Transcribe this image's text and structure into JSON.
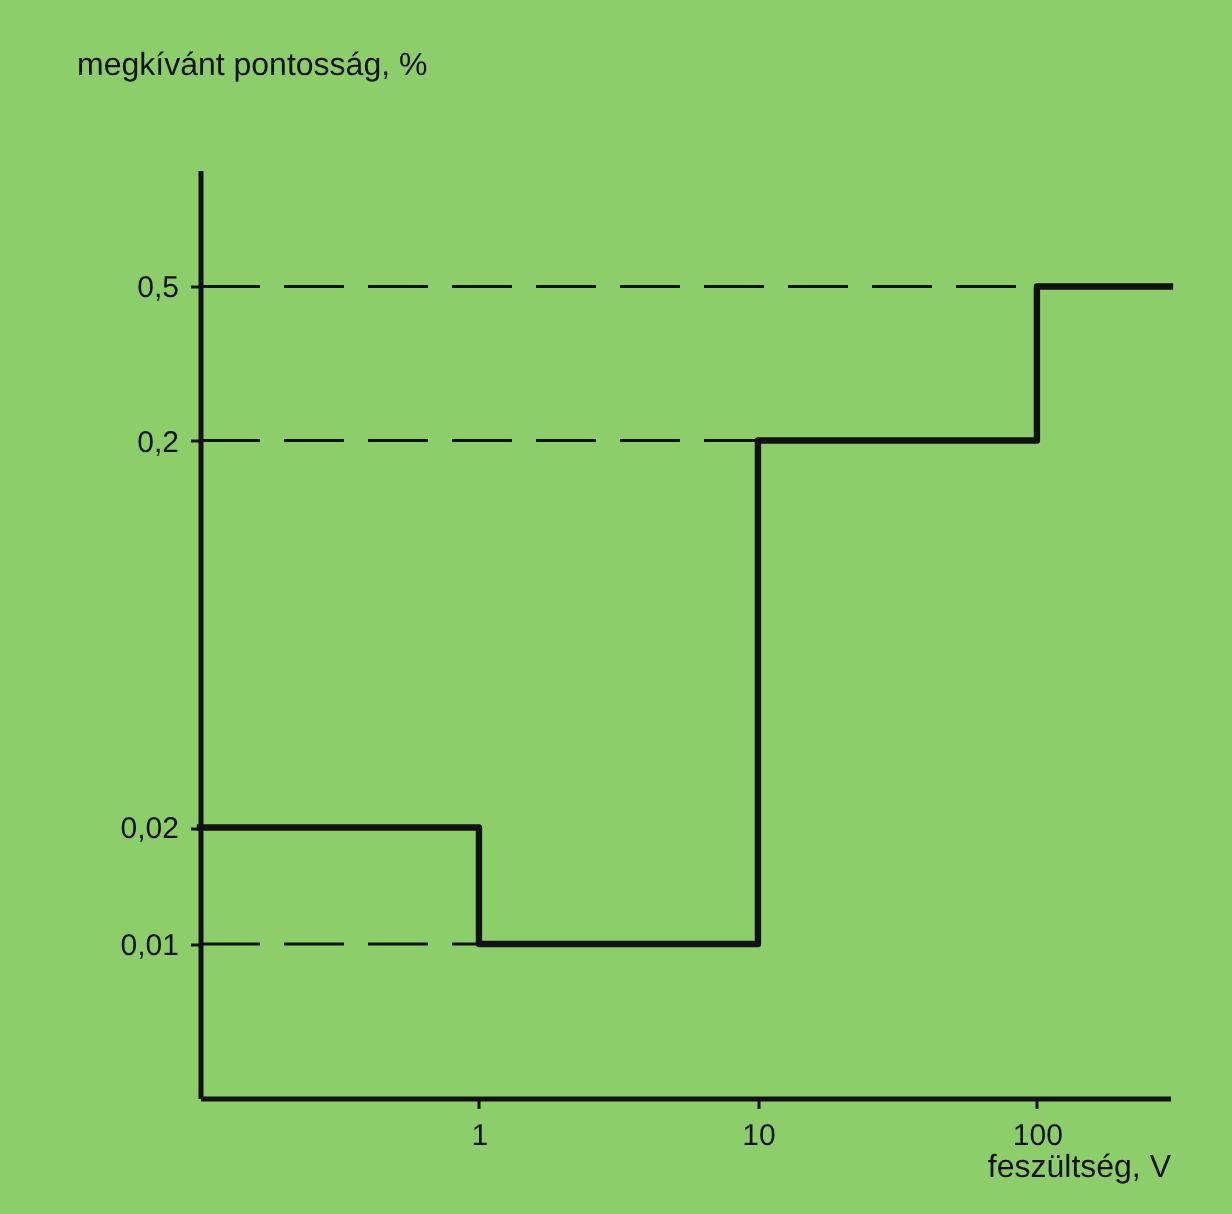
{
  "chart_data": {
    "type": "step",
    "xlabel": "feszültség, V",
    "ylabel": "megkívánt pontosság, %",
    "x": [
      0.1,
      1,
      10,
      100,
      300
    ],
    "series": [
      {
        "color": "#111111",
        "values": [
          0.02,
          0.01,
          0.2,
          0.5,
          0.5
        ]
      }
    ],
    "log": "xy",
    "xlim": [
      0.1,
      300
    ],
    "ylim": [
      0.004,
      1
    ],
    "xticks": [
      1,
      10,
      100
    ],
    "yticks": [
      {
        "value": 0.01,
        "label": "0,01"
      },
      {
        "value": 0.02,
        "label": "0,02"
      },
      {
        "value": 0.2,
        "label": "0,2"
      },
      {
        "value": 0.5,
        "label": "0,5"
      }
    ],
    "ref_lines": [
      {
        "axis": "y",
        "value": 0.01,
        "line_style": "dashed"
      },
      {
        "axis": "y",
        "value": 0.2,
        "line_style": "dashed"
      },
      {
        "axis": "y",
        "value": 0.5,
        "line_style": "dashed"
      }
    ],
    "grid": false,
    "legend": false
  }
}
